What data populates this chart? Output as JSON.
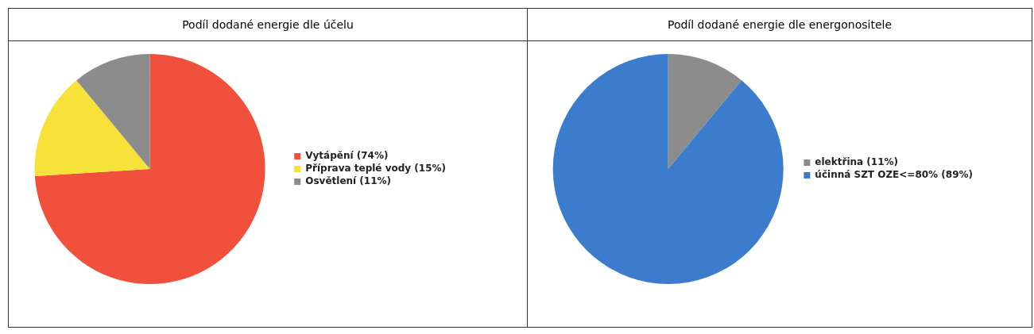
{
  "chart_data": [
    {
      "type": "pie",
      "title": "Podíl dodané energie dle účelu",
      "categories": [
        "Vytápění (74%)",
        "Příprava teplé vody (15%)",
        "Osvětlení (11%)"
      ],
      "values": [
        74,
        15,
        11
      ],
      "colors": [
        "#f0503c",
        "#f7e23a",
        "#8c8c8c"
      ],
      "legend": "right"
    },
    {
      "type": "pie",
      "title": "Podíl dodané energie dle energonositele",
      "categories": [
        "elektřina (11%)",
        "účinná SZT OZE<=80% (89%)"
      ],
      "values": [
        11,
        89
      ],
      "colors": [
        "#8c8c8c",
        "#3b7dcc"
      ],
      "legend": "right"
    }
  ]
}
